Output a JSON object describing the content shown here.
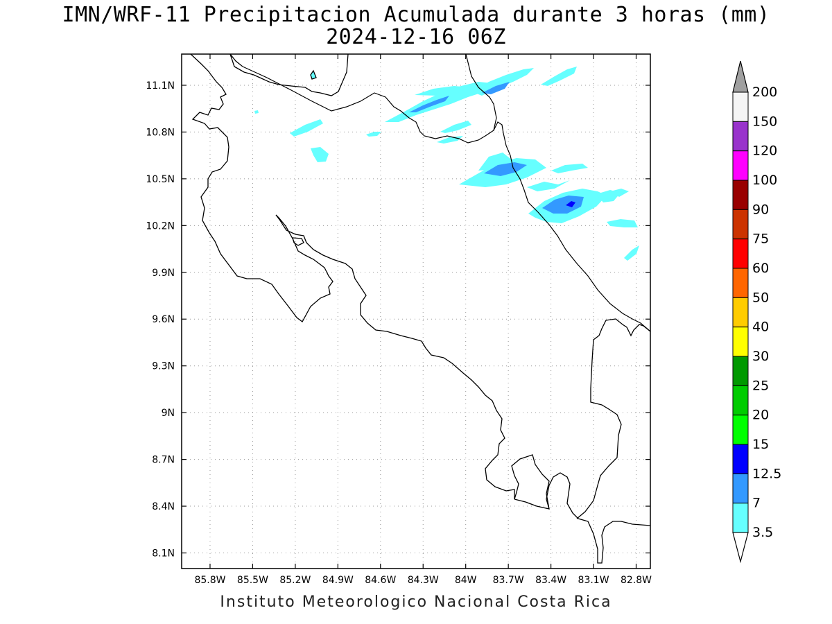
{
  "header": {
    "title": "IMN/WRF-11 Precipitacion Acumulada durante 3 horas (mm)",
    "subtitle": "2024-12-16 06Z"
  },
  "map": {
    "lat_labels": [
      "11.1N",
      "10.8N",
      "10.5N",
      "10.2N",
      "9.9N",
      "9.6N",
      "9.3N",
      "9N",
      "8.7N",
      "8.4N",
      "8.1N"
    ],
    "lon_labels": [
      "85.8W",
      "85.5W",
      "85.2W",
      "84.9W",
      "84.6W",
      "84.3W",
      "84W",
      "83.7W",
      "83.4W",
      "83.1W",
      "82.8W"
    ],
    "lat_values": [
      11.1,
      10.8,
      10.5,
      10.2,
      9.9,
      9.6,
      9.3,
      9.0,
      8.7,
      8.4,
      8.1
    ],
    "lon_values": [
      -85.8,
      -85.5,
      -85.2,
      -84.9,
      -84.6,
      -84.3,
      -84.0,
      -83.7,
      -83.4,
      -83.1,
      -82.8
    ],
    "lat_range": [
      8.0,
      11.3
    ],
    "lon_range": [
      -86.0,
      -82.7
    ],
    "grid": "dotted",
    "coastline_color": "#000000"
  },
  "legend": {
    "levels": [
      "200",
      "150",
      "120",
      "100",
      "90",
      "75",
      "60",
      "50",
      "40",
      "30",
      "25",
      "20",
      "15",
      "12.5",
      "7",
      "3.5"
    ],
    "colors": [
      "#f5f5f5",
      "#9933cc",
      "#ff00ff",
      "#990000",
      "#cc3300",
      "#ff0000",
      "#ff6600",
      "#ffcc00",
      "#ffff00",
      "#009900",
      "#00cc00",
      "#00ff00",
      "#0000ff",
      "#3399ff",
      "#66ffff"
    ],
    "over_color": "#a0a0a0",
    "under_color": "#ffffff"
  },
  "precip_colors": {
    "light": "#66ffff",
    "medium": "#3399ff",
    "heavy": "#0000ff"
  },
  "footer": {
    "credit": "Instituto Meteorologico Nacional Costa Rica"
  }
}
